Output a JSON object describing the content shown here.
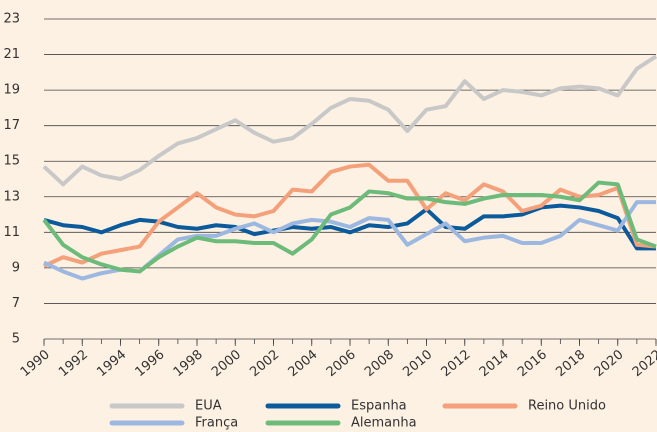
{
  "chart_data": {
    "type": "line",
    "x": [
      1990,
      1991,
      1992,
      1993,
      1994,
      1995,
      1996,
      1997,
      1998,
      1999,
      2000,
      2001,
      2002,
      2003,
      2004,
      2005,
      2006,
      2007,
      2008,
      2009,
      2010,
      2011,
      2012,
      2013,
      2014,
      2015,
      2016,
      2017,
      2018,
      2019,
      2020,
      2021,
      2022
    ],
    "xlim": [
      1990,
      2022
    ],
    "xticks": [
      1990,
      1992,
      1994,
      1996,
      1998,
      2000,
      2002,
      2004,
      2006,
      2008,
      2010,
      2012,
      2014,
      2016,
      2018,
      2020,
      2022
    ],
    "ylim": [
      5,
      23
    ],
    "yticks": [
      5,
      7,
      9,
      11,
      13,
      15,
      17,
      19,
      21,
      23
    ],
    "grid": true,
    "series": [
      {
        "name": "EUA",
        "color": "#c8c8c8",
        "values": [
          14.7,
          13.7,
          14.7,
          14.2,
          14.0,
          14.5,
          15.3,
          16.0,
          16.3,
          16.8,
          17.3,
          16.6,
          16.1,
          16.3,
          17.1,
          18.0,
          18.5,
          18.4,
          17.9,
          16.7,
          17.9,
          18.1,
          19.5,
          18.5,
          19.0,
          18.9,
          18.7,
          19.1,
          19.2,
          19.1,
          18.7,
          20.2,
          20.9
        ]
      },
      {
        "name": "Espanha",
        "color": "#0a5a9c",
        "values": [
          11.7,
          11.4,
          11.3,
          11.0,
          11.4,
          11.7,
          11.6,
          11.3,
          11.2,
          11.4,
          11.3,
          10.9,
          11.1,
          11.3,
          11.2,
          11.3,
          11.0,
          11.4,
          11.3,
          11.5,
          12.3,
          11.3,
          11.2,
          11.9,
          11.9,
          12.0,
          12.4,
          12.5,
          12.4,
          12.2,
          11.8,
          10.1,
          10.1
        ]
      },
      {
        "name": "Reino Unido",
        "color": "#f4a07a",
        "values": [
          9.1,
          9.6,
          9.3,
          9.8,
          10.0,
          10.2,
          11.6,
          12.4,
          13.2,
          12.4,
          12.0,
          11.9,
          12.2,
          13.4,
          13.3,
          14.4,
          14.7,
          14.8,
          13.9,
          13.9,
          12.3,
          13.2,
          12.8,
          13.7,
          13.3,
          12.2,
          12.5,
          13.4,
          13.0,
          13.1,
          13.5,
          10.3,
          10.2
        ]
      },
      {
        "name": "França",
        "color": "#9db8e0",
        "values": [
          9.3,
          8.8,
          8.4,
          8.7,
          8.9,
          8.8,
          9.7,
          10.6,
          10.8,
          10.8,
          11.2,
          11.5,
          11.0,
          11.5,
          11.7,
          11.6,
          11.3,
          11.8,
          11.7,
          10.3,
          10.9,
          11.5,
          10.5,
          10.7,
          10.8,
          10.4,
          10.4,
          10.8,
          11.7,
          11.4,
          11.1,
          12.7,
          12.7
        ]
      },
      {
        "name": "Alemanha",
        "color": "#6dbb7a",
        "values": [
          11.7,
          10.3,
          9.6,
          9.2,
          8.9,
          8.8,
          9.6,
          10.2,
          10.7,
          10.5,
          10.5,
          10.4,
          10.4,
          9.8,
          10.6,
          12.0,
          12.4,
          13.3,
          13.2,
          12.9,
          12.9,
          12.7,
          12.6,
          12.9,
          13.1,
          13.1,
          13.1,
          13.0,
          12.8,
          13.8,
          13.7,
          10.6,
          10.2
        ]
      }
    ]
  }
}
